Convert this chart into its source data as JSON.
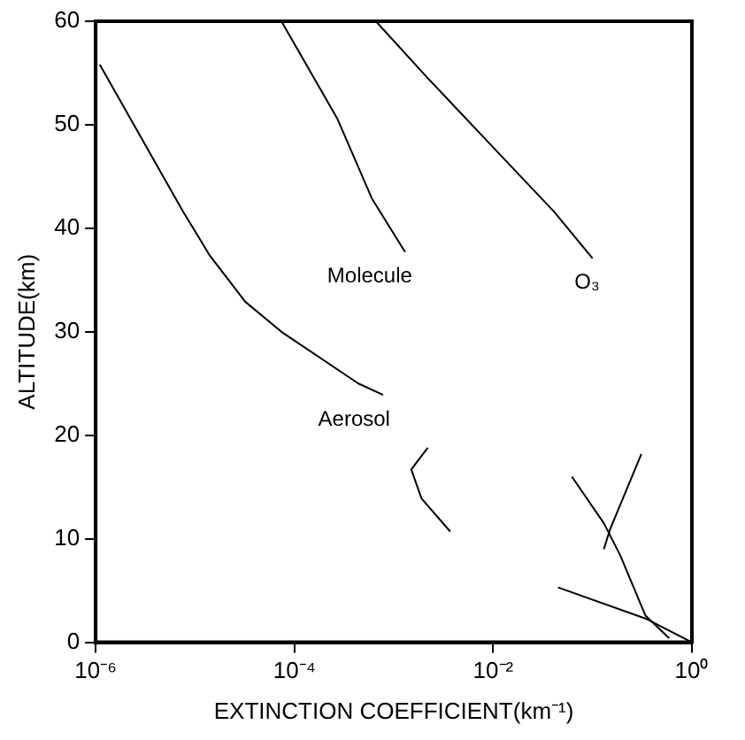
{
  "chart_data": {
    "type": "line",
    "xlabel": "EXTINCTION COEFFICIENT(km⁻¹)",
    "ylabel": "ALTITUDE(km)",
    "log": "x",
    "grid": false,
    "legend": false,
    "marker": "none",
    "line_style": "solid",
    "xlim": [
      1e-06,
      1
    ],
    "xticks": [
      {
        "value": 1e-06,
        "label": "10⁻⁶"
      },
      {
        "value": 0.0001,
        "label": "10⁻⁴"
      },
      {
        "value": 0.01,
        "label": "10⁻²"
      },
      {
        "value": 1,
        "label": "10⁰"
      }
    ],
    "ylim": [
      0,
      60
    ],
    "yticks": [
      0,
      10,
      20,
      30,
      40,
      50,
      60
    ],
    "series": [
      {
        "name": "Aerosol",
        "color": "#000000",
        "x": [
          1.1e-06,
          7.6e-06,
          1.4e-05,
          3.2e-05,
          7.4e-05,
          0.00044,
          0.00078,
          null,
          0.0022,
          0.0015,
          0.0019,
          0.0037,
          null,
          0.045,
          0.34,
          1
        ],
        "values": [
          55.8,
          41.6,
          37.4,
          32.9,
          30,
          25,
          23.9,
          null,
          18.8,
          16.7,
          13.9,
          10.7,
          null,
          5.3,
          2.3,
          0
        ]
      },
      {
        "name": "Molecule",
        "color": "#000000",
        "x": [
          7.4e-05,
          0.00027,
          0.0006,
          0.0013,
          null,
          0.062,
          0.13,
          0.19,
          0.34,
          0.59
        ],
        "values": [
          60,
          50.6,
          42.9,
          37.7,
          null,
          16,
          11.5,
          8.4,
          2.6,
          0.4
        ]
      },
      {
        "name": "O₃",
        "color": "#000000",
        "x": [
          0.00066,
          0.0022,
          0.011,
          0.041,
          0.1,
          null,
          0.31,
          0.15,
          0.13
        ],
        "values": [
          60,
          54.5,
          47.4,
          41.6,
          37.1,
          null,
          18.2,
          10.9,
          9
        ]
      }
    ]
  }
}
